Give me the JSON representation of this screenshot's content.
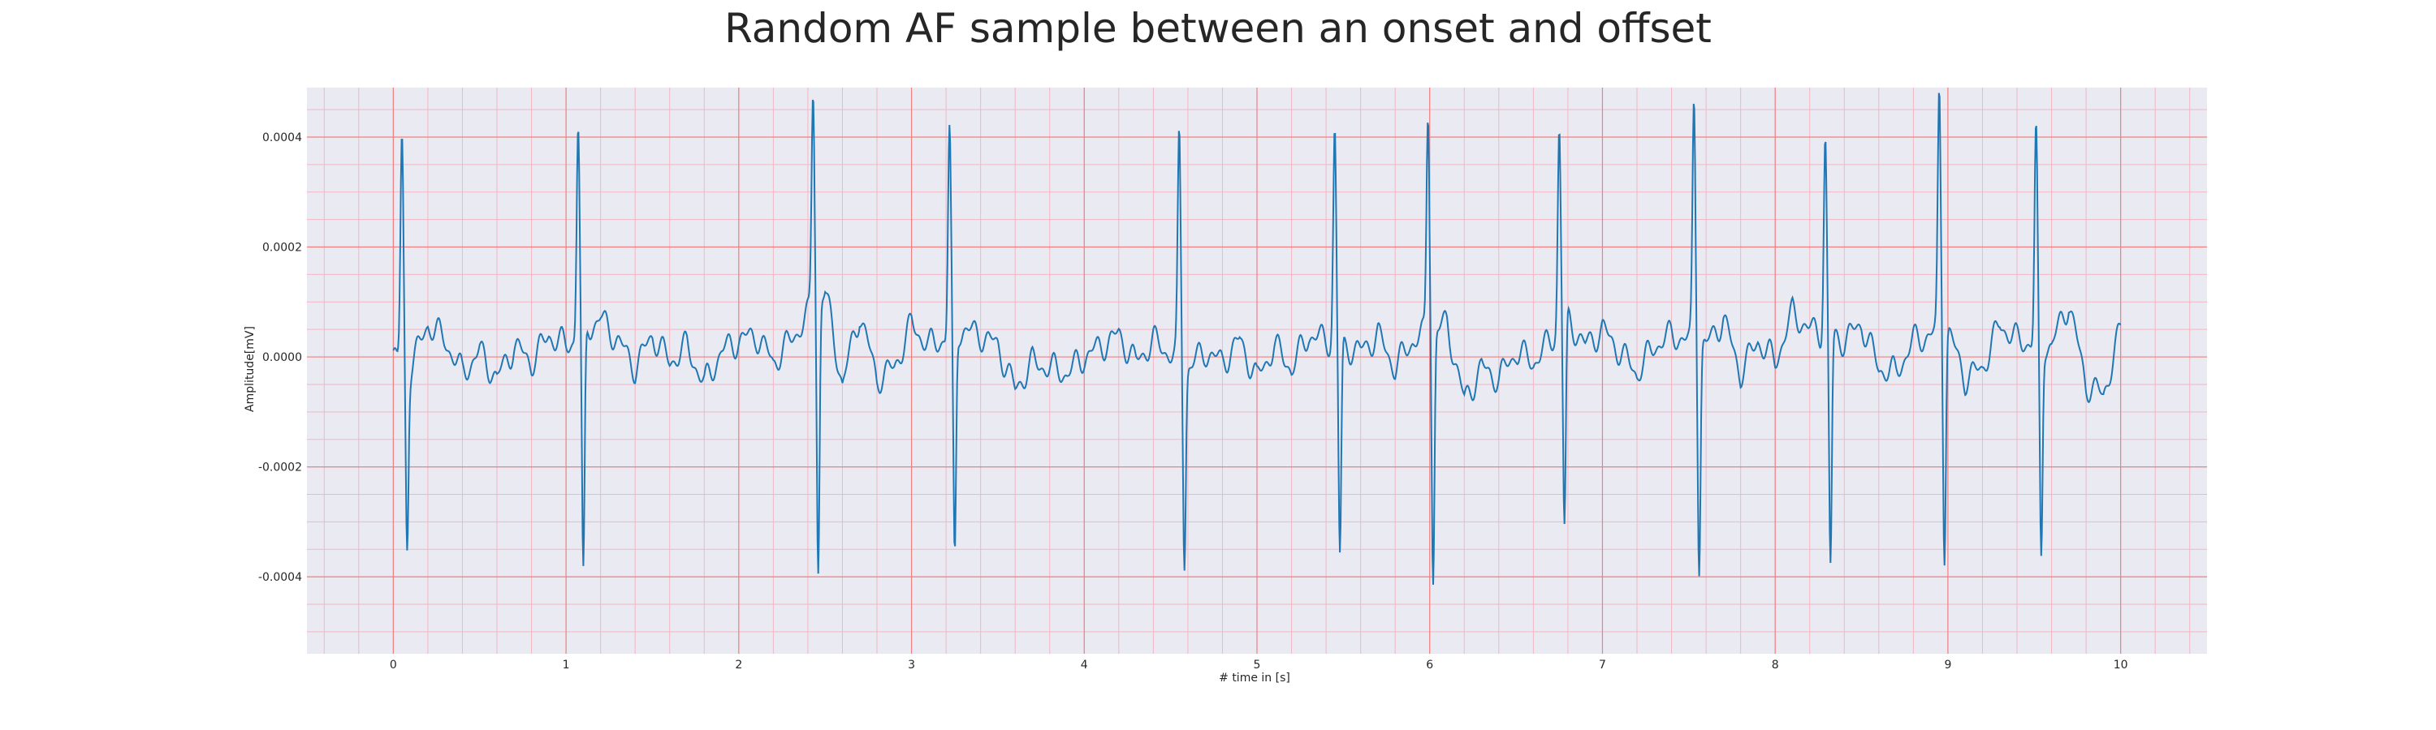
{
  "chart_data": {
    "type": "line",
    "title": "Random AF sample between an onset and offset",
    "xlabel": "# time in [s]",
    "ylabel": "Amplitude[mV]",
    "xlim": [
      -0.5,
      10.5
    ],
    "ylim": [
      -0.00054,
      0.00049
    ],
    "xticks": [
      0,
      1,
      2,
      3,
      4,
      5,
      6,
      7,
      8,
      9,
      10
    ],
    "xtick_labels": [
      "0",
      "1",
      "2",
      "3",
      "4",
      "5",
      "6",
      "7",
      "8",
      "9",
      "10"
    ],
    "yticks": [
      0.0004,
      0.0002,
      0.0,
      -0.0002,
      -0.0004
    ],
    "ytick_labels": [
      "0.0004",
      "0.0002",
      "0.0000",
      "-0.0002",
      "-0.0004"
    ],
    "grid": true,
    "colors": {
      "line": "#1f77b4",
      "background": "#eaeaf2",
      "major_grid": "#f08080",
      "minor_grid": "#f4b6c2"
    },
    "series": [
      {
        "values_description_free": true,
        "beats": [
          {
            "t": 0.05,
            "peak": 0.00041,
            "trough": -0.000325
          },
          {
            "t": 1.07,
            "peak": 0.00039,
            "trough": -0.000455
          },
          {
            "t": 2.43,
            "peak": 0.0004,
            "trough": -0.00049
          },
          {
            "t": 3.22,
            "peak": 0.000375,
            "trough": -0.000415
          },
          {
            "t": 4.55,
            "peak": 0.00041,
            "trough": -0.000355
          },
          {
            "t": 5.45,
            "peak": 0.000385,
            "trough": -0.000385
          },
          {
            "t": 5.99,
            "peak": 0.000405,
            "trough": -0.000455
          },
          {
            "t": 6.75,
            "peak": 0.000365,
            "trough": -0.000375
          },
          {
            "t": 7.53,
            "peak": 0.00044,
            "trough": -0.0004
          },
          {
            "t": 8.29,
            "peak": 0.000355,
            "trough": -0.00042
          },
          {
            "t": 8.95,
            "peak": 0.000435,
            "trough": -0.0004
          },
          {
            "t": 9.51,
            "peak": 0.000385,
            "trough": -0.00039
          }
        ],
        "x": [
          0.0,
          0.1,
          0.2,
          0.3,
          0.4,
          0.5,
          0.6,
          0.7,
          0.8,
          0.9,
          1.0,
          1.2,
          1.3,
          1.4,
          1.5,
          1.6,
          1.7,
          1.8,
          1.9,
          2.0,
          2.1,
          2.2,
          2.3,
          2.5,
          2.6,
          2.7,
          2.8,
          2.9,
          3.0,
          3.1,
          3.3,
          3.4,
          3.5,
          3.6,
          3.7,
          3.8,
          3.9,
          4.0,
          4.1,
          4.2,
          4.3,
          4.4,
          4.6,
          4.7,
          4.8,
          4.9,
          5.0,
          5.1,
          5.2,
          5.3,
          5.5,
          5.6,
          5.7,
          5.8,
          5.9,
          6.1,
          6.2,
          6.3,
          6.4,
          6.5,
          6.6,
          6.7,
          6.8,
          6.9,
          7.0,
          7.1,
          7.2,
          7.3,
          7.4,
          7.6,
          7.7,
          7.8,
          7.9,
          8.0,
          8.1,
          8.2,
          8.4,
          8.5,
          8.6,
          8.7,
          8.8,
          9.0,
          9.1,
          9.2,
          9.3,
          9.4,
          9.6,
          9.7,
          9.8,
          9.9,
          10.0
        ],
        "values": [
          0.0,
          -2e-05,
          6e-05,
          3e-05,
          -3e-05,
          1e-05,
          -4e-05,
          2e-05,
          -1e-05,
          4e-05,
          2e-05,
          7e-05,
          3e-05,
          -2e-05,
          4e-05,
          -1e-05,
          2e-05,
          -5e-05,
          1e-05,
          3e-05,
          4e-05,
          -1e-05,
          3e-05,
          0.00012,
          -5e-05,
          8e-05,
          -4e-05,
          -2e-05,
          6e-05,
          2e-05,
          5e-05,
          4e-05,
          2e-05,
          -6e-05,
          -1e-05,
          -2e-05,
          -3e-05,
          0.0,
          2e-05,
          4e-05,
          -1e-05,
          3e-05,
          -2e-05,
          1e-05,
          -1e-05,
          3e-05,
          -4e-05,
          2e-05,
          -2e-05,
          4e-05,
          2e-05,
          1e-05,
          4e-05,
          -2e-05,
          3e-05,
          6e-05,
          -8e-05,
          -2e-05,
          -4e-05,
          1e-05,
          -1e-05,
          3e-05,
          7e-05,
          2e-05,
          5e-05,
          1e-05,
          -3e-05,
          2e-05,
          4e-05,
          2e-05,
          7e-05,
          -3e-05,
          3e-05,
          -1e-05,
          8e-05,
          5e-05,
          3e-05,
          6e-05,
          -2e-05,
          -3e-05,
          3e-05,
          5e-05,
          -4e-05,
          -2e-05,
          6e-05,
          3e-05,
          2e-05,
          0.0001,
          -5e-05,
          -7e-05,
          5e-05
        ]
      }
    ]
  }
}
